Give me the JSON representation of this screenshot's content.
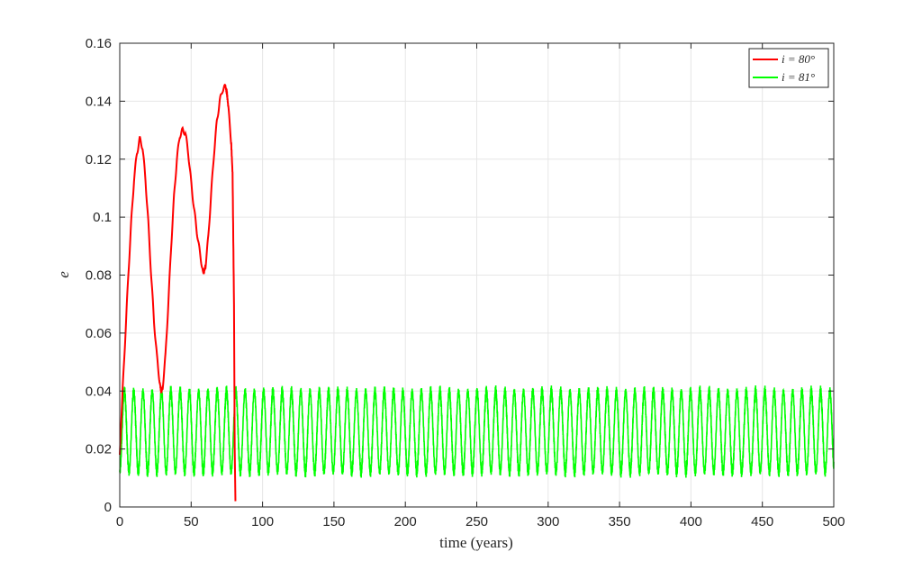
{
  "chart_data": {
    "type": "line",
    "xlabel": "time (years)",
    "ylabel": "e",
    "xlim": [
      0,
      500
    ],
    "ylim": [
      0,
      0.16
    ],
    "xticks": [
      0,
      50,
      100,
      150,
      200,
      250,
      300,
      350,
      400,
      450,
      500
    ],
    "yticks": [
      0,
      0.02,
      0.04,
      0.06,
      0.08,
      0.1,
      0.12,
      0.14,
      0.16
    ],
    "xtick_labels": [
      "0",
      "50",
      "100",
      "150",
      "200",
      "250",
      "300",
      "350",
      "400",
      "450",
      "500"
    ],
    "ytick_labels": [
      "0",
      "0.02",
      "0.04",
      "0.06",
      "0.08",
      "0.1",
      "0.12",
      "0.14",
      "0.16"
    ],
    "grid": true,
    "legend_position": "top-right",
    "series": [
      {
        "name": "i = 80°",
        "color": "#ff0000",
        "x": [
          0,
          2,
          4,
          6,
          8,
          10,
          12,
          14,
          16,
          18,
          20,
          22,
          24,
          26,
          28,
          29,
          30,
          32,
          34,
          36,
          38,
          40,
          42,
          44,
          46,
          48,
          50,
          52,
          54,
          56,
          58,
          59,
          60,
          62,
          64,
          66,
          68,
          70,
          72,
          74,
          75,
          76,
          78,
          79,
          80,
          80.5,
          81
        ],
        "y": [
          0.018,
          0.04,
          0.06,
          0.08,
          0.098,
          0.113,
          0.122,
          0.127,
          0.124,
          0.113,
          0.098,
          0.08,
          0.064,
          0.052,
          0.043,
          0.04,
          0.041,
          0.052,
          0.07,
          0.09,
          0.107,
          0.12,
          0.128,
          0.13,
          0.129,
          0.122,
          0.112,
          0.103,
          0.095,
          0.088,
          0.082,
          0.081,
          0.083,
          0.093,
          0.108,
          0.122,
          0.133,
          0.14,
          0.144,
          0.145,
          0.143,
          0.138,
          0.126,
          0.115,
          0.07,
          0.02,
          0.002
        ]
      },
      {
        "name": "i = 81°",
        "color": "#00ff00",
        "x_start": 0,
        "x_end": 500,
        "period_years": 6.5,
        "mean": 0.026,
        "amplitude": 0.014
      }
    ]
  }
}
